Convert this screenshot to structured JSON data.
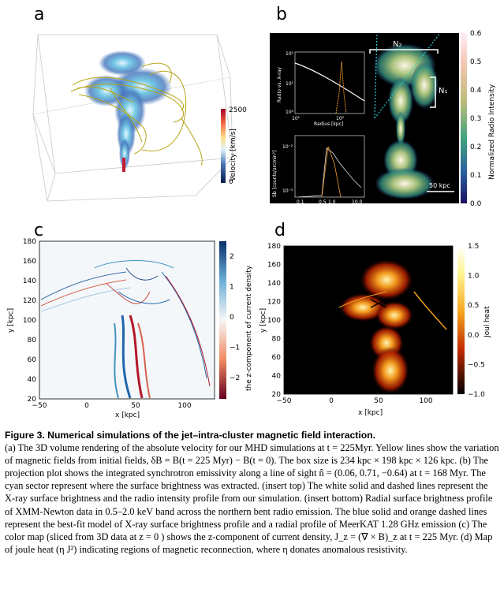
{
  "panels": {
    "a": {
      "label": "a",
      "colorbar": {
        "label": "Velocity [km/s]",
        "max": "2500",
        "min": "0"
      }
    },
    "b": {
      "label": "b",
      "annotations": {
        "n2": "N₂",
        "n1": "N₁",
        "scale": "50 kpc"
      },
      "colorbar": {
        "label": "Normalized Radio Intensity",
        "ticks": [
          "0.6",
          "0.5",
          "0.4",
          "0.3",
          "0.2",
          "0.1",
          "0.0"
        ]
      },
      "inset_top": {
        "ylabel": "Radio vs. X-ray",
        "xlabel": "Radius [kpc]",
        "yticks": [
          "10²",
          "10¹",
          "10⁰"
        ],
        "xticks": [
          "10¹",
          "10²"
        ]
      },
      "inset_bottom": {
        "ylabel": "Sb [counts/arcmin²]",
        "yticks": [
          "10⁻²",
          "10⁻³"
        ],
        "xticks": [
          "0.1",
          "0.5",
          "1.0",
          "10.0"
        ]
      }
    },
    "c": {
      "label": "c",
      "xlabel": "x [kpc]",
      "ylabel": "y [kpc]",
      "xticks": [
        "−50",
        "0",
        "50",
        "100"
      ],
      "yticks": [
        "180",
        "160",
        "140",
        "120",
        "100",
        "80",
        "60",
        "40",
        "20"
      ],
      "colorbar": {
        "label": "the z-component of current density",
        "ticks": [
          "2",
          "1",
          "0",
          "−1",
          "−2"
        ]
      }
    },
    "d": {
      "label": "d",
      "xlabel": "x [kpc]",
      "ylabel": "y [kpc]",
      "xticks": [
        "−50",
        "0",
        "50",
        "100"
      ],
      "yticks": [
        "180",
        "160",
        "140",
        "120",
        "100",
        "80",
        "60",
        "40",
        "20"
      ],
      "colorbar": {
        "label": "Joul heat",
        "ticks": [
          "1.5",
          "1.0",
          "0.5",
          "0.0",
          "−0.5",
          "−1.0"
        ]
      }
    }
  },
  "caption": {
    "title": "Figure 3.   Numerical simulations of the jet–intra-cluster magnetic field interaction.",
    "body": "(a) The 3D volume rendering of the absolute velocity for our MHD simulations at t = 225Myr. Yellow lines show the variation of magnetic fields from initial fields, δB = B(t = 225 Myr) − B(t = 0). The box size is 234 kpc × 198 kpc × 126 kpc. (b) The projection plot shows the integrated synchrotron emissivity along a line of sight n̂ = (0.06, 0.71, −0.64) at t = 168 Myr. The cyan sector represent where the surface brightness was extracted. (insert top) The white solid and dashed lines represent the X-ray surface brightness and the radio intensity profile from our simulation. (insert bottom) Radial surface brightness profile of XMM-Newton data in 0.5–2.0 keV band across the northern bent radio emission. The blue solid and orange dashed lines represent the best-fit model of X-ray surface brightness profile and a radial profile of MeerKAT 1.28 GHz emission (c) The color map (sliced from 3D data at z = 0 ) shows the z-component of current density, J_z = (∇ × B)_z at t = 225 Myr. (d) Map of joule heat (η J²) indicating regions of magnetic reconnection, where η donates anomalous resistivity."
  }
}
